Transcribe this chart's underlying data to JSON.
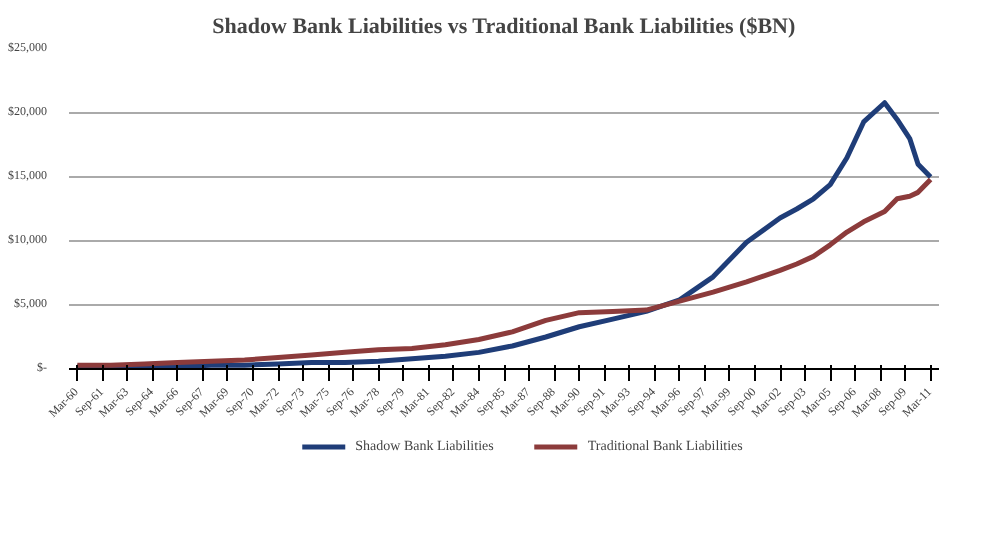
{
  "chart_data": {
    "type": "line",
    "title": "Shadow Bank Liabilities vs Traditional Bank Liabilities ($BN)",
    "x": [
      "1960-03",
      "1962-03",
      "1964-03",
      "1966-03",
      "1968-03",
      "1970-03",
      "1972-03",
      "1974-03",
      "1976-03",
      "1978-03",
      "1980-03",
      "1982-03",
      "1984-03",
      "1986-03",
      "1988-03",
      "1990-03",
      "1992-03",
      "1994-03",
      "1996-03",
      "1998-03",
      "2000-03",
      "2002-03",
      "2003-03",
      "2004-03",
      "2005-03",
      "2006-03",
      "2007-03",
      "2008-06",
      "2009-03",
      "2009-12",
      "2010-06",
      "2011-03"
    ],
    "series": [
      {
        "name": "Shadow Bank Liabilities",
        "color": "#1f3d78",
        "values": [
          200,
          200,
          200,
          200,
          300,
          300,
          400,
          500,
          500,
          600,
          800,
          1000,
          1300,
          1800,
          2500,
          3300,
          3900,
          4500,
          5400,
          7200,
          9900,
          11800,
          12500,
          13300,
          14400,
          16500,
          19300,
          20800,
          19500,
          18000,
          16000,
          15000
        ]
      },
      {
        "name": "Traditional Bank Liabilities",
        "color": "#8c3b3b",
        "values": [
          300,
          300,
          400,
          500,
          600,
          700,
          900,
          1100,
          1300,
          1500,
          1600,
          1900,
          2300,
          2900,
          3800,
          4400,
          4500,
          4600,
          5300,
          6000,
          6800,
          7700,
          8200,
          8800,
          9700,
          10700,
          11500,
          12300,
          13300,
          13500,
          13800,
          14800
        ]
      }
    ],
    "xlim": [
      "1959-09",
      "2011-09"
    ],
    "xticks": [
      {
        "value": "1960-03",
        "label": "Mar-60"
      },
      {
        "value": "1961-09",
        "label": "Sep-61"
      },
      {
        "value": "1963-03",
        "label": "Mar-63"
      },
      {
        "value": "1964-09",
        "label": "Sep-64"
      },
      {
        "value": "1966-03",
        "label": "Mar-66"
      },
      {
        "value": "1967-09",
        "label": "Sep-67"
      },
      {
        "value": "1969-03",
        "label": "Mar-69"
      },
      {
        "value": "1970-09",
        "label": "Sep-70"
      },
      {
        "value": "1972-03",
        "label": "Mar-72"
      },
      {
        "value": "1973-09",
        "label": "Sep-73"
      },
      {
        "value": "1975-03",
        "label": "Mar-75"
      },
      {
        "value": "1976-09",
        "label": "Sep-76"
      },
      {
        "value": "1978-03",
        "label": "Mar-78"
      },
      {
        "value": "1979-09",
        "label": "Sep-79"
      },
      {
        "value": "1981-03",
        "label": "Mar-81"
      },
      {
        "value": "1982-09",
        "label": "Sep-82"
      },
      {
        "value": "1984-03",
        "label": "Mar-84"
      },
      {
        "value": "1985-09",
        "label": "Sep-85"
      },
      {
        "value": "1987-03",
        "label": "Mar-87"
      },
      {
        "value": "1988-09",
        "label": "Sep-88"
      },
      {
        "value": "1990-03",
        "label": "Mar-90"
      },
      {
        "value": "1991-09",
        "label": "Sep-91"
      },
      {
        "value": "1993-03",
        "label": "Mar-93"
      },
      {
        "value": "1994-09",
        "label": "Sep-94"
      },
      {
        "value": "1996-03",
        "label": "Mar-96"
      },
      {
        "value": "1997-09",
        "label": "Sep-97"
      },
      {
        "value": "1999-03",
        "label": "Mar-99"
      },
      {
        "value": "2000-09",
        "label": "Sep-00"
      },
      {
        "value": "2002-03",
        "label": "Mar-02"
      },
      {
        "value": "2003-09",
        "label": "Sep-03"
      },
      {
        "value": "2005-03",
        "label": "Mar-05"
      },
      {
        "value": "2006-09",
        "label": "Sep-06"
      },
      {
        "value": "2008-03",
        "label": "Mar-08"
      },
      {
        "value": "2009-09",
        "label": "Sep-09"
      },
      {
        "value": "2011-03",
        "label": "Mar-11"
      }
    ],
    "ylim": [
      0,
      25000
    ],
    "yticks": [
      {
        "value": 0,
        "label": "$-"
      },
      {
        "value": 5000,
        "label": "$5,000"
      },
      {
        "value": 10000,
        "label": "$10,000"
      },
      {
        "value": 15000,
        "label": "$15,000"
      },
      {
        "value": 20000,
        "label": "$20,000"
      },
      {
        "value": 25000,
        "label": "$25,000"
      }
    ],
    "grid": "y",
    "legend": "bottom",
    "marker": "none",
    "line_style": "solid"
  }
}
